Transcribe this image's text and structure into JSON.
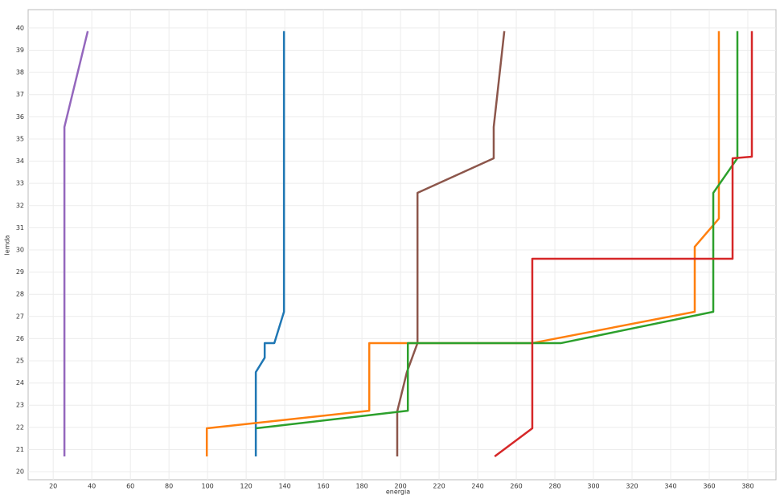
{
  "chart_data": {
    "type": "line",
    "x_label": "energia",
    "y_label": "lemda",
    "xlim": [
      7,
      394.6
    ],
    "ylim": [
      19.64,
      40.83
    ],
    "xticks": [
      20,
      40,
      60,
      80,
      100,
      120,
      140,
      160,
      180,
      200,
      220,
      240,
      260,
      280,
      300,
      320,
      340,
      360,
      380
    ],
    "yticks": [
      20,
      21,
      22,
      23,
      24,
      25,
      26,
      27,
      28,
      29,
      30,
      31,
      32,
      33,
      34,
      35,
      36,
      37,
      38,
      39,
      40
    ],
    "grid": true,
    "series": [
      {
        "color": "#9467bd",
        "x": [
          37.9,
          25.8,
          25.8
        ],
        "values": [
          39.86,
          35.54,
          20.69
        ]
      },
      {
        "color": "#1f77b4",
        "x": [
          139.6,
          139.6,
          134.6,
          129.6,
          129.6,
          125,
          125
        ],
        "values": [
          39.86,
          27.21,
          25.8,
          25.8,
          25.14,
          24.49,
          20.69
        ]
      },
      {
        "color": "#8c564b",
        "x": [
          253.8,
          248.3,
          248.3,
          208.8,
          208.8,
          203.3,
          198.3,
          198.3
        ],
        "values": [
          39.86,
          35.54,
          34.13,
          32.57,
          25.8,
          24.49,
          22.72,
          20.69
        ]
      },
      {
        "color": "#ff7f0e",
        "x": [
          365,
          365,
          352.5,
          352.5,
          268.3,
          183.8,
          183.8,
          99.6,
          99.6
        ],
        "values": [
          39.86,
          31.41,
          30.14,
          27.21,
          25.8,
          25.8,
          22.75,
          21.96,
          20.69
        ]
      },
      {
        "color": "#2ca02c",
        "x": [
          374.6,
          374.6,
          362.1,
          362.1,
          283.3,
          203.8,
          203.8,
          125
        ],
        "values": [
          39.86,
          34.13,
          32.57,
          27.21,
          25.8,
          25.8,
          22.75,
          21.96
        ]
      },
      {
        "color": "#d62728",
        "x": [
          382.1,
          382.1,
          372.1,
          372.1,
          268.3,
          268.3,
          248.8
        ],
        "values": [
          39.86,
          34.2,
          34.13,
          29.6,
          29.6,
          21.96,
          20.69
        ]
      }
    ]
  }
}
